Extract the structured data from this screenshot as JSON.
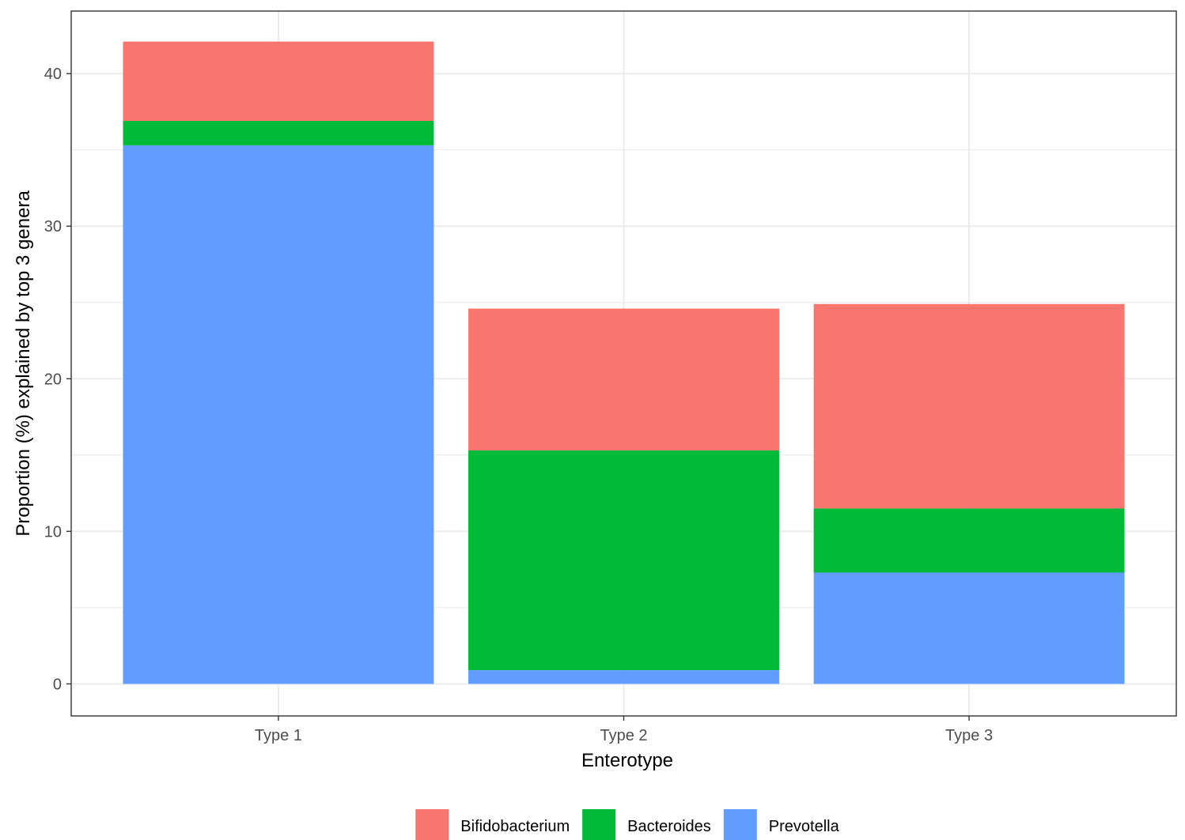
{
  "chart_data": {
    "type": "bar",
    "stacked": true,
    "categories": [
      "Type 1",
      "Type 2",
      "Type 3"
    ],
    "series": [
      {
        "name": "Prevotella",
        "color": "#619CFF",
        "values": [
          35.3,
          0.9,
          7.3
        ]
      },
      {
        "name": "Bacteroides",
        "color": "#00BA38",
        "values": [
          1.6,
          14.4,
          4.2
        ]
      },
      {
        "name": "Bifidobacterium",
        "color": "#F8766D",
        "values": [
          5.2,
          9.3,
          13.4
        ]
      }
    ],
    "legend_order": [
      "Bifidobacterium",
      "Bacteroides",
      "Prevotella"
    ],
    "xlabel": "Enterotype",
    "ylabel": "Proportion (%) explained by top 3 genera",
    "ylim": [
      -2.1,
      44.1
    ],
    "yticks": [
      0,
      10,
      20,
      30,
      40
    ],
    "grid": true,
    "legend_position": "bottom"
  }
}
